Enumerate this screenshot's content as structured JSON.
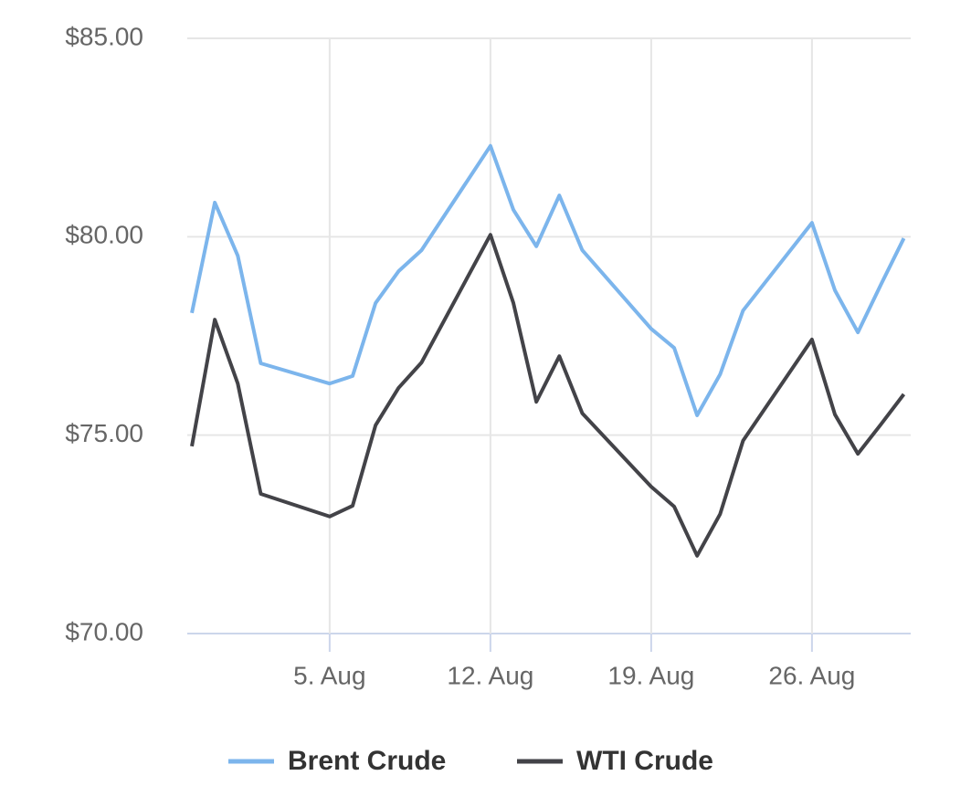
{
  "chart_data": {
    "type": "line",
    "x": [
      -1,
      0,
      1,
      2,
      5,
      6,
      7,
      8,
      9,
      12,
      13,
      14,
      15,
      16,
      19,
      20,
      21,
      22,
      23,
      26,
      27,
      28,
      29,
      30
    ],
    "series": [
      {
        "name": "Brent Crude",
        "color": "#7cb5ec",
        "values": [
          78.08,
          80.86,
          79.52,
          76.81,
          76.3,
          76.49,
          78.33,
          79.13,
          79.66,
          82.29,
          80.68,
          79.76,
          81.04,
          79.66,
          77.68,
          77.2,
          75.5,
          76.53,
          78.14,
          80.35,
          78.65,
          77.59,
          78.79,
          79.96
        ]
      },
      {
        "name": "WTI Crude",
        "color": "#434348",
        "values": [
          74.72,
          77.91,
          76.3,
          73.52,
          72.95,
          73.22,
          75.25,
          76.19,
          76.83,
          80.05,
          78.33,
          75.84,
          76.99,
          75.55,
          73.7,
          73.2,
          71.96,
          73.01,
          74.86,
          77.41,
          75.52,
          74.53,
          75.27,
          76.03
        ]
      }
    ],
    "xlim": [
      -1.2,
      30.3
    ],
    "xticks": [
      {
        "value": 5,
        "label": "5. Aug"
      },
      {
        "value": 12,
        "label": "12. Aug"
      },
      {
        "value": 19,
        "label": "19. Aug"
      },
      {
        "value": 26,
        "label": "26. Aug"
      }
    ],
    "ylim": [
      70,
      85
    ],
    "yticks": [
      {
        "value": 70,
        "label": "$70.00"
      },
      {
        "value": 75,
        "label": "$75.00"
      },
      {
        "value": 80,
        "label": "$80.00"
      },
      {
        "value": 85,
        "label": "$85.00"
      }
    ],
    "grid": true,
    "legend": "bottom"
  }
}
